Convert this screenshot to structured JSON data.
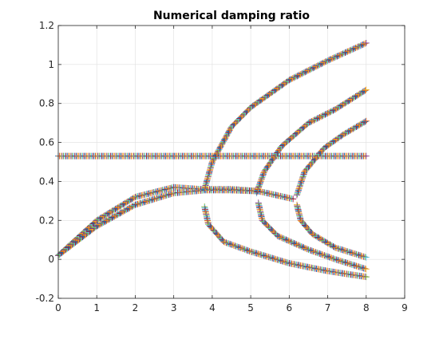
{
  "chart_data": {
    "type": "scatter",
    "title": "Numerical damping ratio",
    "xlabel": "",
    "ylabel": "",
    "xlim": [
      0,
      9
    ],
    "ylim": [
      -0.2,
      1.2
    ],
    "xticks": [
      "0",
      "1",
      "2",
      "3",
      "4",
      "5",
      "6",
      "7",
      "8",
      "9"
    ],
    "yticks": [
      "-0.2",
      "0",
      "0.2",
      "0.4",
      "0.6",
      "0.8",
      "1",
      "1.2"
    ],
    "grid": true,
    "legend": "none",
    "marker": "+",
    "marker_colors": [
      "#0072BD",
      "#D95319",
      "#EDB120",
      "#7E2F8E",
      "#77AC30",
      "#4DBEEE",
      "#A2142F"
    ],
    "series": [
      {
        "x": [
          0,
          8
        ],
        "y": [
          0.53,
          0.53
        ]
      },
      {
        "x": [
          0,
          1,
          2,
          3,
          3.7,
          4.5,
          5.2
        ],
        "y": [
          0.02,
          0.2,
          0.32,
          0.37,
          0.36,
          0.36,
          0.35
        ]
      },
      {
        "x": [
          0,
          1,
          2,
          3,
          3.8,
          4.5,
          5.2,
          6.1
        ],
        "y": [
          0.02,
          0.17,
          0.28,
          0.34,
          0.355,
          0.355,
          0.35,
          0.31
        ]
      },
      {
        "x": [
          3.8,
          4.0,
          4.5,
          5,
          6,
          7,
          8
        ],
        "y": [
          0.36,
          0.5,
          0.68,
          0.78,
          0.92,
          1.02,
          1.11
        ]
      },
      {
        "x": [
          3.8,
          3.9,
          4.3,
          5,
          6,
          7,
          8
        ],
        "y": [
          0.27,
          0.18,
          0.09,
          0.04,
          -0.02,
          -0.06,
          -0.09
        ]
      },
      {
        "x": [
          5.15,
          5.35,
          5.8,
          6.5,
          7.2,
          8
        ],
        "y": [
          0.34,
          0.45,
          0.58,
          0.7,
          0.77,
          0.87
        ]
      },
      {
        "x": [
          5.2,
          5.3,
          5.7,
          6.5,
          7.2,
          8
        ],
        "y": [
          0.29,
          0.2,
          0.12,
          0.05,
          0.0,
          -0.05
        ]
      },
      {
        "x": [
          6.2,
          6.4,
          6.9,
          7.4,
          8
        ],
        "y": [
          0.33,
          0.45,
          0.57,
          0.64,
          0.71
        ]
      },
      {
        "x": [
          6.2,
          6.3,
          6.6,
          7.2,
          8
        ],
        "y": [
          0.28,
          0.2,
          0.13,
          0.06,
          0.01
        ]
      }
    ]
  }
}
